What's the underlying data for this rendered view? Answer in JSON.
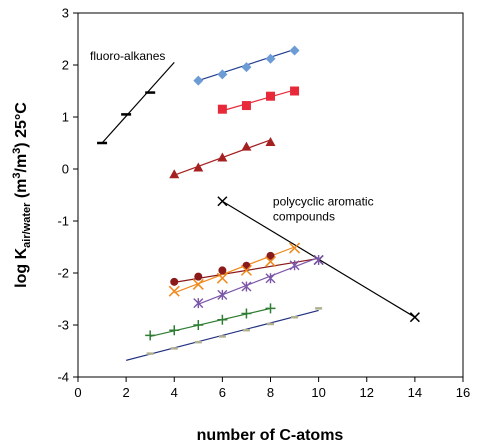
{
  "chart_data": {
    "type": "scatter",
    "title": "",
    "xlabel": "number of C-atoms",
    "ylabel": {
      "prefix": "log K",
      "subscript": "air/water",
      "middle": " (m",
      "sup1": "3",
      "slash": "/m",
      "sup2": "3",
      "suffix": ") 25°C"
    },
    "xlim": [
      0,
      16
    ],
    "ylim": [
      -4,
      3
    ],
    "xticks": [
      0,
      2,
      4,
      6,
      8,
      10,
      12,
      14,
      16
    ],
    "yticks": [
      -4,
      -3,
      -2,
      -1,
      0,
      1,
      2,
      3
    ],
    "grid": false,
    "annotations": [
      {
        "lines": [
          "fluoro-alkanes"
        ],
        "x": 0.5,
        "y": 2.1
      },
      {
        "lines": [
          "polycyclic aromatic",
          "compounds"
        ],
        "x": 8.1,
        "y": -0.7
      }
    ],
    "series": [
      {
        "marker": "diamond",
        "color": "#6c9bd6",
        "line_color": "#1f3f8f",
        "x": [
          5,
          6,
          7,
          8,
          9
        ],
        "y": [
          1.7,
          1.82,
          1.96,
          2.12,
          2.28
        ],
        "fit": [
          [
            5,
            1.7
          ],
          [
            9,
            2.3
          ]
        ]
      },
      {
        "marker": "square",
        "color": "#e8293a",
        "line_color": "#e8293a",
        "x": [
          6,
          7,
          8,
          9
        ],
        "y": [
          1.15,
          1.22,
          1.4,
          1.5
        ],
        "fit": [
          [
            6,
            1.12
          ],
          [
            9,
            1.52
          ]
        ]
      },
      {
        "marker": "triangle",
        "color": "#a52020",
        "line_color": "#a52020",
        "x": [
          4,
          5,
          6,
          7,
          8
        ],
        "y": [
          -0.1,
          0.03,
          0.22,
          0.43,
          0.52
        ],
        "fit": [
          [
            4,
            -0.12
          ],
          [
            8,
            0.56
          ]
        ]
      },
      {
        "marker": "dash",
        "color": "#000000",
        "line_color": "#000000",
        "x": [
          1,
          2,
          3
        ],
        "y": [
          0.5,
          1.05,
          1.47
        ],
        "fit": [
          [
            1,
            0.5
          ],
          [
            4,
            2.05
          ]
        ]
      },
      {
        "marker": "asterisk",
        "color": "#000000",
        "line_color": "#000000",
        "x": [
          6,
          10,
          14
        ],
        "y": [
          -0.62,
          -1.75,
          -2.85
        ],
        "fit": [
          [
            6,
            -0.62
          ],
          [
            14,
            -2.85
          ]
        ]
      },
      {
        "marker": "circle",
        "color": "#8b1a1a",
        "line_color": "#8b1a1a",
        "x": [
          4,
          5,
          6,
          7,
          8
        ],
        "y": [
          -2.17,
          -2.07,
          -1.95,
          -1.86,
          -1.67
        ],
        "fit": [
          [
            4,
            -2.18
          ],
          [
            10,
            -1.72
          ]
        ]
      },
      {
        "marker": "x",
        "color": "#f08a1e",
        "line_color": "#f08a1e",
        "x": [
          4,
          5,
          6,
          7,
          8,
          9
        ],
        "y": [
          -2.35,
          -2.22,
          -2.1,
          -1.95,
          -1.78,
          -1.52
        ],
        "fit": [
          [
            4,
            -2.38
          ],
          [
            9,
            -1.5
          ]
        ]
      },
      {
        "marker": "star",
        "color": "#7b55a8",
        "line_color": "#7b55a8",
        "x": [
          5,
          6,
          7,
          8,
          9,
          10
        ],
        "y": [
          -2.58,
          -2.42,
          -2.26,
          -2.1,
          -1.85,
          -1.75
        ],
        "fit": [
          [
            5,
            -2.6
          ],
          [
            10,
            -1.7
          ]
        ]
      },
      {
        "marker": "plus",
        "color": "#2e7d32",
        "line_color": "#2e7d32",
        "x": [
          3,
          4,
          5,
          6,
          7,
          8
        ],
        "y": [
          -3.2,
          -3.1,
          -3.0,
          -2.9,
          -2.78,
          -2.68
        ],
        "fit": [
          [
            3,
            -3.22
          ],
          [
            8,
            -2.68
          ]
        ]
      },
      {
        "marker": "smalldash",
        "color": "#b0b090",
        "line_color": "#1f2f7f",
        "x": [
          3,
          4,
          5,
          6,
          7,
          8,
          9,
          10
        ],
        "y": [
          -3.55,
          -3.45,
          -3.33,
          -3.22,
          -3.1,
          -2.98,
          -2.85,
          -2.68
        ],
        "fit": [
          [
            2,
            -3.68
          ],
          [
            10,
            -2.72
          ]
        ]
      }
    ]
  }
}
